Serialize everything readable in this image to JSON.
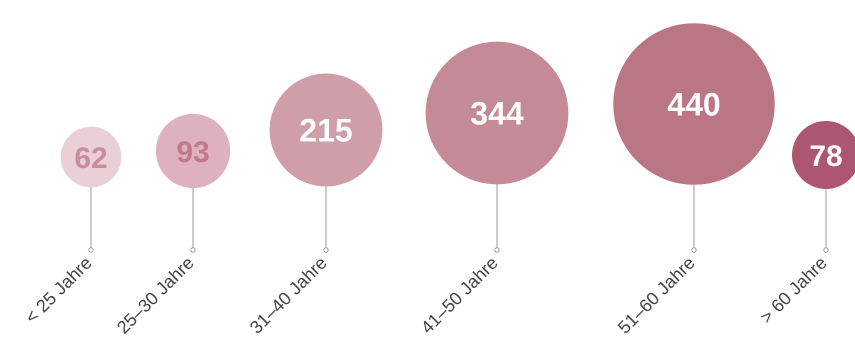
{
  "chart_data": {
    "type": "bubble",
    "title": "",
    "categories": [
      "< 25 Jahre",
      "25–30 Jahre",
      "31–40 Jahre",
      "41–50 Jahre",
      "51–60 Jahre",
      "> 60 Jahre"
    ],
    "values": [
      62,
      93,
      215,
      344,
      440,
      78
    ],
    "value_labels": [
      "62",
      "93",
      "215",
      "344",
      "440",
      "78"
    ],
    "colors": [
      "#e9cfd6",
      "#ddb1bd",
      "#cf9ea9",
      "#c48a97",
      "#bb7686",
      "#ad566f"
    ],
    "label_colors": [
      "#c98d9c",
      "#c07a8c",
      "#ffffff",
      "#ffffff",
      "#ffffff",
      "#ffffff"
    ],
    "stem_color": "#999999"
  }
}
